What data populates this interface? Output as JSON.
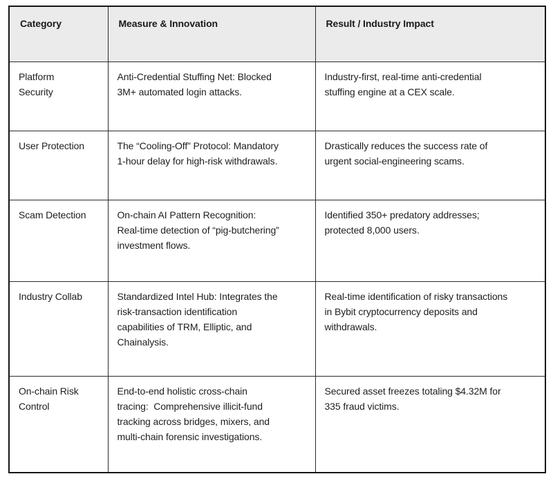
{
  "table": {
    "columns": [
      "Category",
      "Measure & Innovation",
      "Result / Industry Impact"
    ],
    "rows": [
      {
        "category": "Platform\nSecurity",
        "measure": "Anti-Credential Stuffing Net: Blocked\n3M+ automated login attacks.",
        "result": "Industry-first, real-time anti-credential\nstuffing engine at a CEX scale."
      },
      {
        "category": "User Protection",
        "measure": "The “Cooling-Off” Protocol: Mandatory\n1-hour delay for high-risk withdrawals.",
        "result": "Drastically reduces the success rate of\nurgent social-engineering scams."
      },
      {
        "category": "Scam Detection",
        "measure": "On-chain AI Pattern Recognition:\nReal-time detection of “pig-butchering”\ninvestment flows.",
        "result": "Identified 350+ predatory addresses;\nprotected 8,000 users."
      },
      {
        "category": "Industry Collab",
        "measure": "Standardized Intel Hub: Integrates the\nrisk-transaction identification\ncapabilities of TRM, Elliptic, and\nChainalysis.",
        "result": "Real-time identification of risky transactions\nin Bybit cryptocurrency deposits and\nwithdrawals."
      },
      {
        "category": "On-chain Risk\nControl",
        "measure": "End-to-end holistic cross-chain\ntracing:  Comprehensive illicit-fund\ntracking across bridges, mixers, and\nmulti-chain forensic investigations.",
        "result": "Secured asset freezes totaling $4.32M for\n335 fraud victims."
      }
    ]
  },
  "colors": {
    "header_bg": "#ebebeb",
    "border": "#161616",
    "text": "#1e1e1e",
    "page_bg": "#ffffff"
  }
}
